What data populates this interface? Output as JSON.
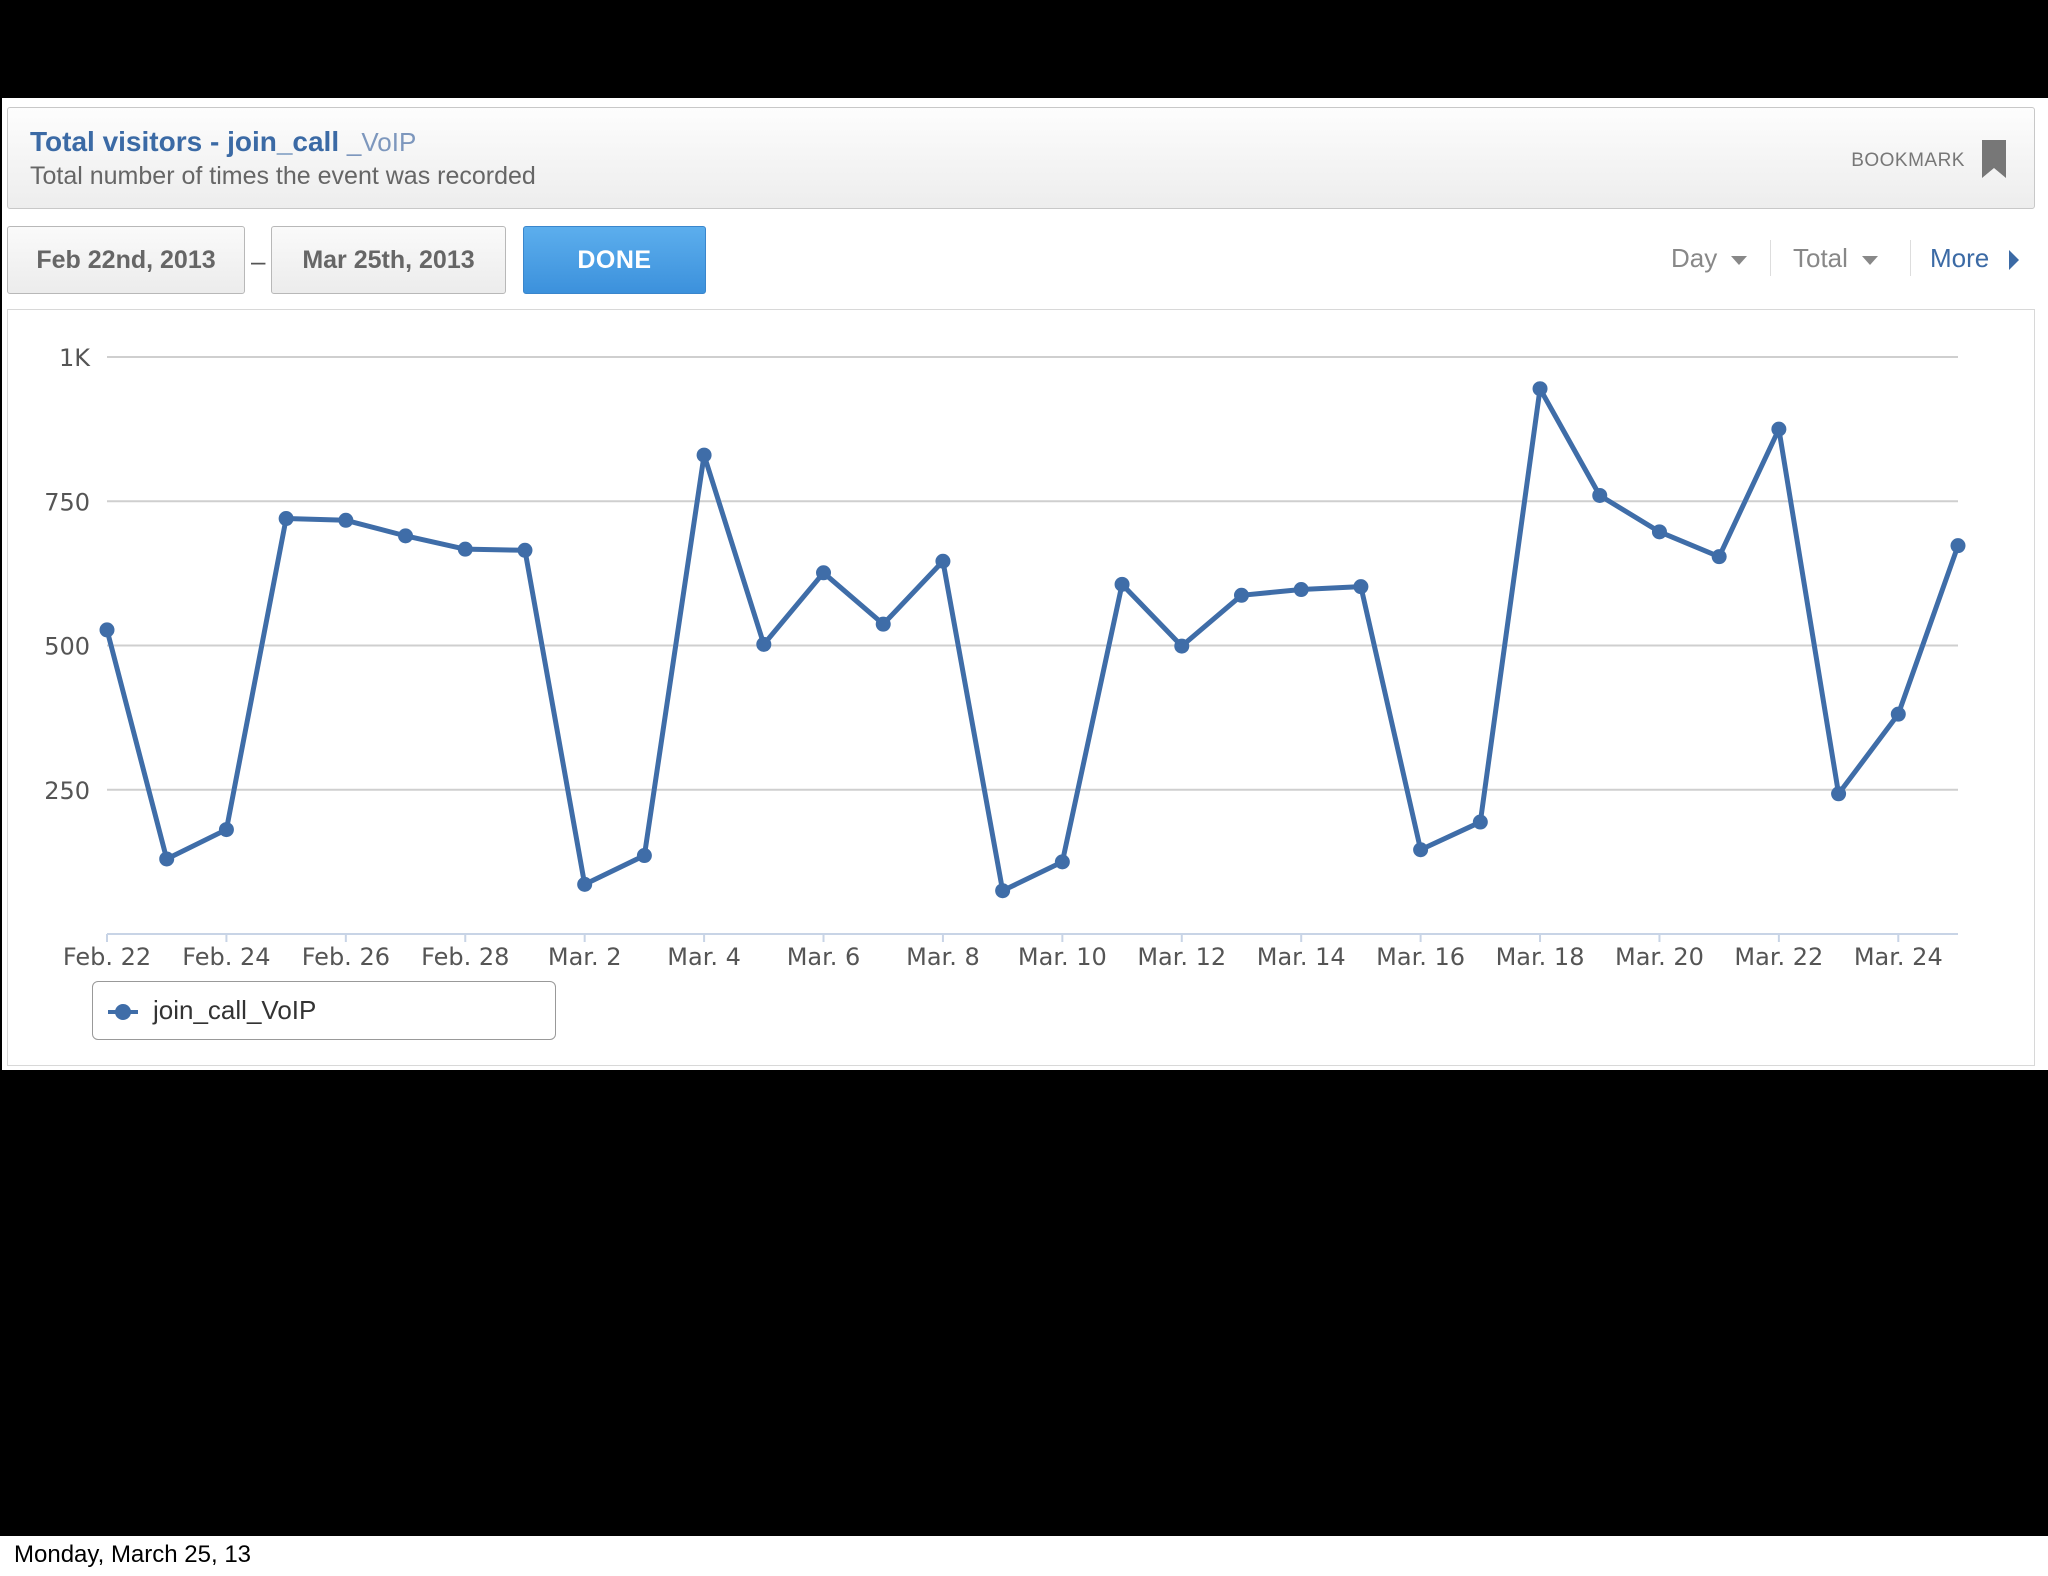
{
  "header": {
    "title": "Total visitors - join_call",
    "title_suffix": "_VoIP",
    "subtitle": "Total number of times the event was recorded",
    "bookmark_label": "BOOKMARK"
  },
  "toolbar": {
    "start_date": "Feb 22nd, 2013",
    "separator": "–",
    "end_date": "Mar 25th, 2013",
    "done_label": "DONE",
    "interval_select": "Day",
    "measure_select": "Total",
    "more_label": "More"
  },
  "colors": {
    "series": "#3f6da8",
    "done_button": "#4aa0e6",
    "title": "#3b6aa5"
  },
  "icons": {
    "bookmark": "bookmark-icon",
    "dropdown": "chevron-down-icon",
    "more": "chevron-right-icon"
  },
  "chart_data": {
    "type": "line",
    "x": [
      "Feb. 22",
      "Feb. 23",
      "Feb. 24",
      "Feb. 25",
      "Feb. 26",
      "Feb. 27",
      "Feb. 28",
      "Mar. 1",
      "Mar. 2",
      "Mar. 3",
      "Mar. 4",
      "Mar. 5",
      "Mar. 6",
      "Mar. 7",
      "Mar. 8",
      "Mar. 9",
      "Mar. 10",
      "Mar. 11",
      "Mar. 12",
      "Mar. 13",
      "Mar. 14",
      "Mar. 15",
      "Mar. 16",
      "Mar. 17",
      "Mar. 18",
      "Mar. 19",
      "Mar. 20",
      "Mar. 21",
      "Mar. 22",
      "Mar. 23",
      "Mar. 24",
      "Mar. 25"
    ],
    "series": [
      {
        "name": "join_call_VoIP",
        "values": [
          527,
          130,
          181,
          720,
          717,
          690,
          667,
          665,
          86,
          136,
          830,
          502,
          626,
          537,
          646,
          75,
          125,
          606,
          499,
          587,
          597,
          602,
          146,
          194,
          945,
          760,
          697,
          654,
          875,
          243,
          381,
          673
        ]
      }
    ],
    "x_tick_labels": [
      "Feb. 22",
      "Feb. 24",
      "Feb. 26",
      "Feb. 28",
      "Mar. 2",
      "Mar. 4",
      "Mar. 6",
      "Mar. 8",
      "Mar. 10",
      "Mar. 12",
      "Mar. 14",
      "Mar. 16",
      "Mar. 18",
      "Mar. 20",
      "Mar. 22",
      "Mar. 24"
    ],
    "y_ticks": [
      250,
      500,
      750,
      1000
    ],
    "y_tick_labels": [
      "250",
      "500",
      "750",
      "1K"
    ],
    "ylim": [
      0,
      1000
    ],
    "grid": true,
    "legend_position": "bottom-left",
    "title": "",
    "xlabel": "",
    "ylabel": ""
  },
  "footer": {
    "date": "Monday, March 25, 13"
  }
}
